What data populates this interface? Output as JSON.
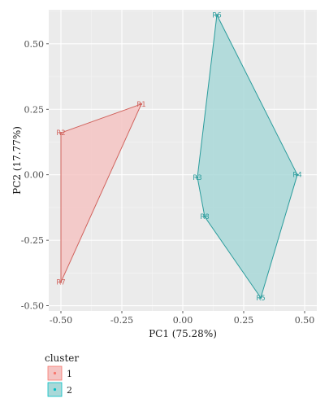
{
  "chart_data": {
    "type": "scatter",
    "xlabel": "PC1 (75.28%)",
    "ylabel": "PC2 (17.77%)",
    "xlim": [
      -0.55,
      0.55
    ],
    "ylim": [
      -0.52,
      0.63
    ],
    "x_ticks": [
      -0.5,
      -0.25,
      0.0,
      0.25,
      0.5
    ],
    "x_tick_labels": [
      "-0.50",
      "-0.25",
      "0.00",
      "0.25",
      "0.50"
    ],
    "y_ticks": [
      -0.5,
      -0.25,
      0.0,
      0.25,
      0.5
    ],
    "y_tick_labels": [
      "-0.50",
      "-0.25",
      "0.00",
      "0.25",
      "0.50"
    ],
    "grid": true,
    "legend": {
      "title": "cluster",
      "placement": "bottom-left",
      "entries": [
        {
          "label": "1",
          "fill": "#f4c4c3",
          "color": "#f8766d"
        },
        {
          "label": "2",
          "fill": "#a9d8d8",
          "color": "#00bfc4"
        }
      ]
    },
    "series": [
      {
        "cluster": "1",
        "color": "#d0625c",
        "fill": "#f4c4c3",
        "points": [
          {
            "label": "R1",
            "x": -0.17,
            "y": 0.27
          },
          {
            "label": "R2",
            "x": -0.5,
            "y": 0.16
          },
          {
            "label": "R7",
            "x": -0.5,
            "y": -0.41
          }
        ]
      },
      {
        "cluster": "2",
        "color": "#2b9c9c",
        "fill": "#a9d8d8",
        "points": [
          {
            "label": "R6",
            "x": 0.14,
            "y": 0.61
          },
          {
            "label": "R4",
            "x": 0.47,
            "y": 0.0
          },
          {
            "label": "R5",
            "x": 0.32,
            "y": -0.47
          },
          {
            "label": "R8",
            "x": 0.09,
            "y": -0.16
          },
          {
            "label": "R3",
            "x": 0.06,
            "y": -0.01
          }
        ]
      }
    ]
  }
}
